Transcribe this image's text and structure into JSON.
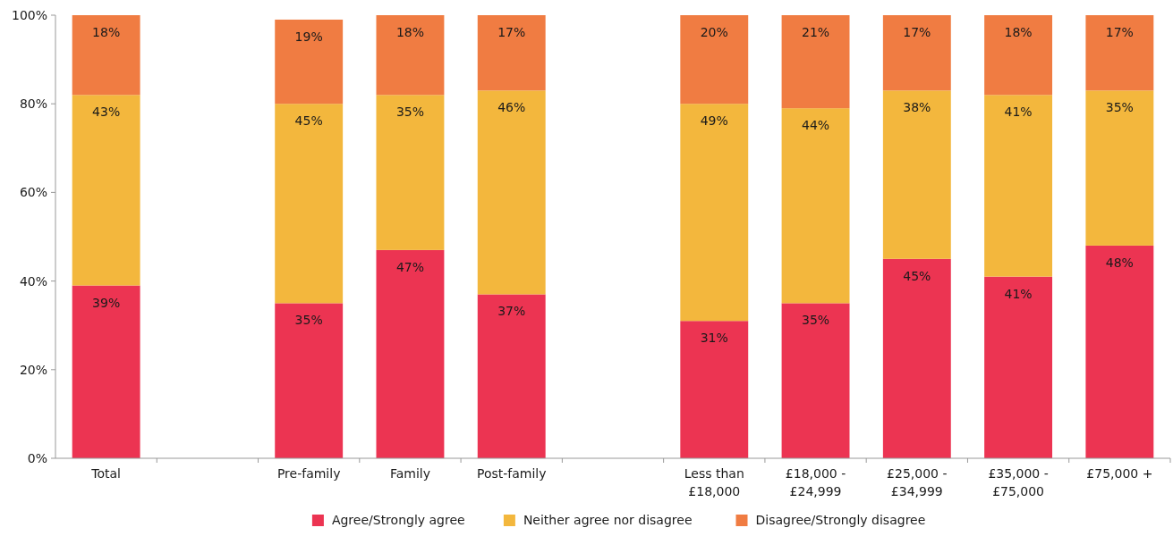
{
  "chart_data": {
    "type": "bar",
    "stacked": true,
    "categories": [
      "Total",
      null,
      "Pre-family",
      "Family",
      "Post-family",
      null,
      "Less than £18,000",
      "£18,000 - £24,999",
      "£25,000 - £34,999",
      "£35,000 - £75,000",
      "£75,000 +"
    ],
    "series": [
      {
        "name": "Agree/Strongly agree",
        "color": "#ec3452",
        "values": [
          39,
          null,
          35,
          47,
          37,
          null,
          31,
          35,
          45,
          41,
          48
        ],
        "value_labels": [
          "39%",
          null,
          "35%",
          "47%",
          "37%",
          null,
          "31%",
          "35%",
          "45%",
          "41%",
          "48%"
        ]
      },
      {
        "name": "Neither agree nor disagree",
        "color": "#f3b73d",
        "values": [
          43,
          null,
          45,
          35,
          46,
          null,
          49,
          44,
          38,
          41,
          35
        ],
        "value_labels": [
          "43%",
          null,
          "45%",
          "35%",
          "46%",
          null,
          "49%",
          "44%",
          "38%",
          "41%",
          "35%"
        ]
      },
      {
        "name": "Disagree/Strongly disagree",
        "color": "#f07c42",
        "values": [
          18,
          null,
          19,
          18,
          17,
          null,
          20,
          21,
          17,
          18,
          17
        ],
        "value_labels": [
          "18%",
          null,
          "19%",
          "18%",
          "17%",
          null,
          "20%",
          "21%",
          "17%",
          "18%",
          "17%"
        ]
      }
    ],
    "ylim": [
      0,
      100
    ],
    "yticks": [
      {
        "value": 0,
        "label": "0%"
      },
      {
        "value": 20,
        "label": "20%"
      },
      {
        "value": 40,
        "label": "40%"
      },
      {
        "value": 60,
        "label": "60%"
      },
      {
        "value": 80,
        "label": "80%"
      },
      {
        "value": 100,
        "label": "100%"
      }
    ],
    "grid": false,
    "legend": "bottom"
  }
}
